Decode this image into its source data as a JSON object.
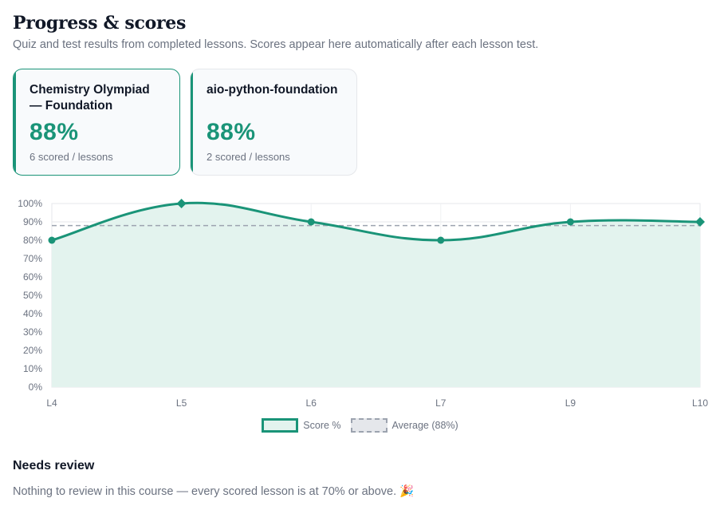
{
  "header": {
    "title": "Progress & scores",
    "subtitle": "Quiz and test results from completed lessons. Scores appear here automatically after each lesson test."
  },
  "courses": [
    {
      "name": "Chemistry Olympiad — Foundation",
      "score": "88%",
      "meta": "6 scored / lessons",
      "selected": true
    },
    {
      "name": "aio-python-foundation",
      "score": "88%",
      "meta": "2 scored / lessons",
      "selected": false
    }
  ],
  "chart_data": {
    "type": "line",
    "categories": [
      "L4",
      "L5",
      "L6",
      "L7",
      "L9",
      "L10"
    ],
    "series": [
      {
        "name": "Score %",
        "values": [
          80,
          100,
          90,
          80,
          90,
          90
        ],
        "color": "#1a9478",
        "fill": "#e3f3ee"
      }
    ],
    "average": {
      "name": "Average (88%)",
      "value": 88,
      "color": "#9ca3af"
    },
    "ylim": [
      0,
      100
    ],
    "yticks": [
      "0%",
      "10%",
      "20%",
      "30%",
      "40%",
      "50%",
      "60%",
      "70%",
      "80%",
      "90%",
      "100%"
    ],
    "grid": true,
    "legend_placement": "bottom-center"
  },
  "legend": {
    "score_label": "Score %",
    "average_label": "Average (88%)"
  },
  "review": {
    "heading": "Needs review",
    "text": "Nothing to review in this course — every scored lesson is at 70% or above. 🎉"
  },
  "colors": {
    "accent": "#1a9478",
    "fill": "#e3f3ee"
  }
}
